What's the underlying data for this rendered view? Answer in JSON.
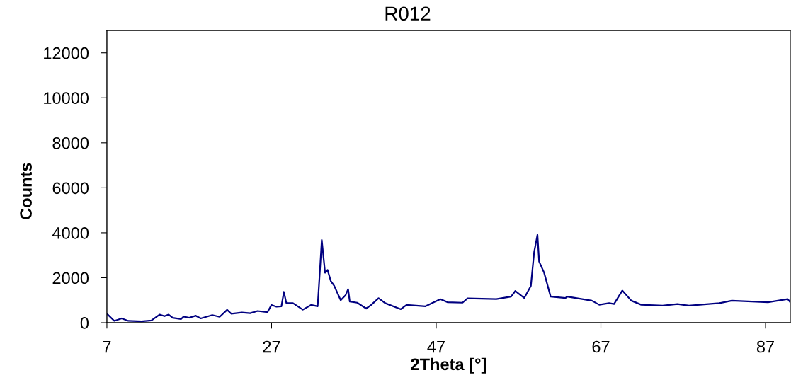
{
  "chart_data": {
    "type": "line",
    "title": "R012",
    "xlabel": "2Theta [°]",
    "ylabel": "Counts",
    "xlim": [
      7,
      90
    ],
    "xticks": [
      7,
      27,
      47,
      67,
      87
    ],
    "ylim": [
      0,
      13000
    ],
    "yticks": [
      0,
      2000,
      4000,
      6000,
      8000,
      10000,
      12000
    ],
    "grid": false,
    "legend": false,
    "marker": "none",
    "line_style": "solid",
    "series": [
      {
        "color": "#000080",
        "x": [
          7.0,
          7.9,
          8.8,
          9.6,
          11.2,
          12.4,
          13.4,
          14.0,
          14.5,
          15.0,
          16.0,
          16.3,
          17.0,
          17.8,
          18.4,
          19.8,
          20.7,
          21.6,
          22.1,
          23.4,
          24.4,
          25.3,
          26.5,
          27.0,
          27.6,
          28.2,
          28.5,
          28.8,
          29.6,
          30.8,
          31.8,
          32.6,
          32.9,
          33.1,
          33.5,
          33.8,
          34.2,
          34.6,
          35.4,
          36.0,
          36.3,
          36.5,
          37.4,
          38.5,
          39.1,
          40.0,
          40.8,
          42.7,
          43.4,
          45.7,
          47.5,
          48.4,
          50.2,
          50.8,
          54.3,
          56.1,
          56.6,
          57.7,
          58.5,
          58.9,
          59.3,
          59.5,
          60.1,
          60.9,
          62.7,
          62.9,
          65.9,
          66.8,
          68.0,
          68.6,
          69.6,
          70.7,
          71.9,
          74.5,
          76.3,
          77.7,
          81.4,
          82.9,
          87.3,
          89.7,
          90.0
        ],
        "values": [
          400,
          80,
          190,
          80,
          60,
          100,
          360,
          290,
          360,
          220,
          160,
          270,
          220,
          310,
          190,
          340,
          260,
          570,
          400,
          450,
          420,
          520,
          470,
          790,
          710,
          730,
          1370,
          870,
          870,
          580,
          790,
          730,
          2480,
          3680,
          2220,
          2350,
          1850,
          1650,
          1000,
          1230,
          1490,
          940,
          890,
          630,
          790,
          1090,
          870,
          600,
          790,
          730,
          1050,
          910,
          890,
          1080,
          1050,
          1160,
          1410,
          1100,
          1640,
          3150,
          3910,
          2720,
          2230,
          1160,
          1100,
          1160,
          980,
          800,
          870,
          830,
          1430,
          980,
          800,
          760,
          830,
          760,
          870,
          980,
          910,
          1050,
          910
        ]
      }
    ]
  }
}
